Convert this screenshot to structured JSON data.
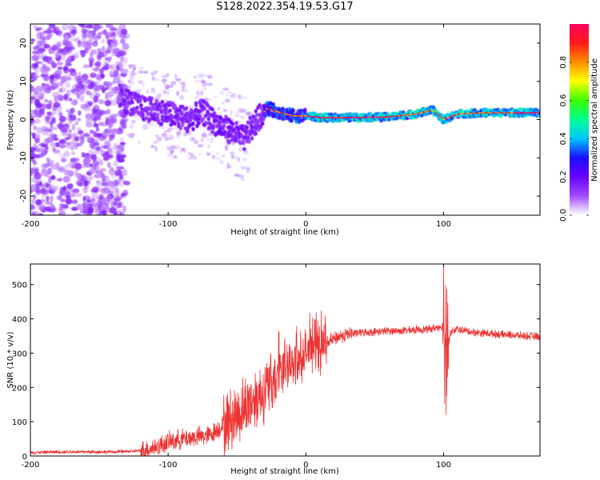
{
  "title": "S128.2022.354.19.53.G17",
  "colors": {
    "snr_line": "#ee3333",
    "colorbar": [
      "#ffffff",
      "#a04bff",
      "#6a00ff",
      "#1a10ff",
      "#00c8ff",
      "#00ff90",
      "#3cff00",
      "#ffff00",
      "#ff8c00",
      "#ff1a1a",
      "#ff0060"
    ]
  },
  "chart_data": [
    {
      "type": "heatmap",
      "title": "",
      "xlabel": "Height of straight line (km)",
      "ylabel": "Frequency (Hz)",
      "xlim": [
        -200,
        170
      ],
      "ylim": [
        -25,
        25
      ],
      "xticks": [
        -200,
        -100,
        0,
        100
      ],
      "yticks": [
        -20,
        -10,
        0,
        10,
        20
      ],
      "xtick_labels": [
        "-200",
        "-100",
        "0",
        "100"
      ],
      "ytick_labels": [
        "-20",
        "-10",
        "0",
        "10",
        "20"
      ],
      "colorbar": {
        "label": "Normalized spectral amplitude",
        "range": [
          0,
          1
        ],
        "ticks": [
          0.0,
          0.2,
          0.4,
          0.6,
          0.8
        ],
        "tick_labels": [
          "0.0",
          "0.2",
          "0.4",
          "0.6",
          "0.8"
        ]
      },
      "ridge": {
        "description": "dominant frequency track",
        "x": [
          -135,
          -120,
          -105,
          -95,
          -85,
          -75,
          -65,
          -55,
          -45,
          -35,
          -28,
          -20,
          -10,
          0,
          10,
          30,
          60,
          80,
          92,
          100,
          110,
          130,
          150,
          170
        ],
        "y": [
          6,
          3,
          2,
          1,
          0,
          2,
          -1,
          -3,
          -5,
          0,
          3,
          2,
          1,
          1,
          0.5,
          0.5,
          0.7,
          1.5,
          2.5,
          0,
          1.5,
          1.8,
          1.8,
          1.8
        ]
      }
    },
    {
      "type": "line",
      "title": "",
      "xlabel": "Height of straight line (km)",
      "ylabel": "SNR (10 * v/v)",
      "xlim": [
        -200,
        170
      ],
      "ylim": [
        0,
        560
      ],
      "xticks": [
        -200,
        -100,
        0,
        100
      ],
      "yticks": [
        0,
        100,
        200,
        300,
        400,
        500
      ],
      "xtick_labels": [
        "-200",
        "-100",
        "0",
        "100"
      ],
      "ytick_labels": [
        "0",
        "100",
        "200",
        "300",
        "400",
        "500"
      ],
      "series": [
        {
          "name": "SNR",
          "color": "#ee3333",
          "x": [
            -200,
            -180,
            -160,
            -140,
            -120,
            -110,
            -100,
            -90,
            -80,
            -70,
            -60,
            -50,
            -40,
            -30,
            -25,
            -20,
            -15,
            -10,
            -5,
            0,
            5,
            10,
            15,
            20,
            25,
            30,
            40,
            50,
            60,
            70,
            80,
            90,
            95,
            100,
            102,
            105,
            110,
            120,
            140,
            160,
            170
          ],
          "y": [
            10,
            12,
            12,
            12,
            15,
            25,
            40,
            50,
            55,
            60,
            90,
            120,
            160,
            190,
            210,
            230,
            250,
            260,
            280,
            300,
            320,
            310,
            330,
            340,
            350,
            355,
            360,
            362,
            365,
            365,
            368,
            370,
            375,
            380,
            300,
            360,
            370,
            362,
            355,
            350,
            348
          ]
        }
      ]
    }
  ]
}
